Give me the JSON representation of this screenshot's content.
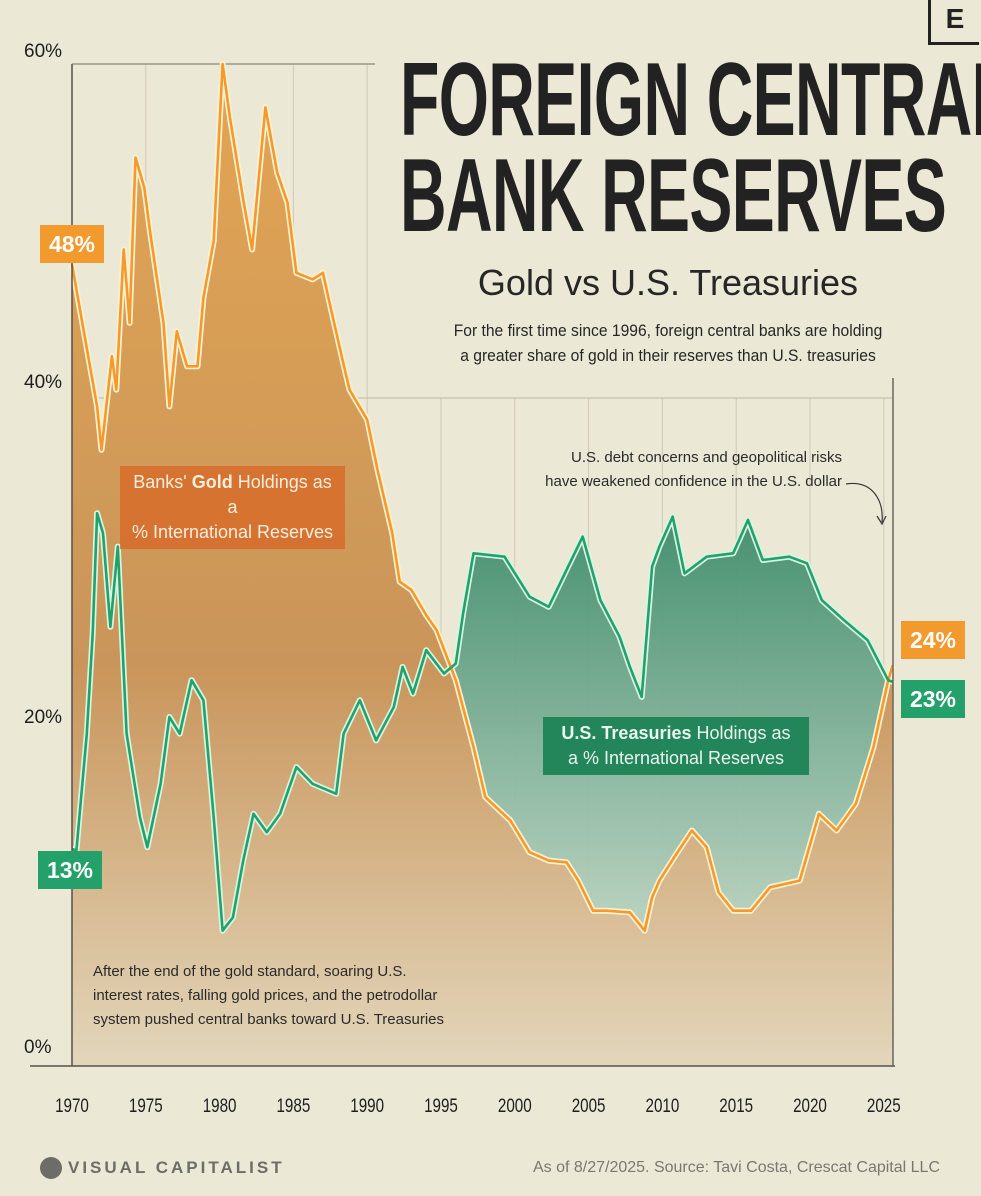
{
  "header": {
    "title_line1": "FOREIGN CENTRAL",
    "title_line2": "BANK RESERVES",
    "subtitle": "Gold vs U.S. Treasuries",
    "description_line1": "For the first time since 1996, foreign central banks are holding",
    "description_line2": "a greater share of gold in their reserves than U.S. treasuries",
    "brand_mark": "E"
  },
  "annotations": {
    "debt_line1": "U.S. debt concerns and geopolitical risks",
    "debt_line2": "have weakened confidence in the U.S. dollar",
    "std_line1": "After the end of the gold standard, soaring U.S.",
    "std_line2": "interest rates, falling gold prices, and the petrodollar",
    "std_line3": "system pushed central banks toward U.S. Treasuries"
  },
  "labels": {
    "gold_prefix": "Banks' ",
    "gold_bold": "Gold",
    "gold_suffix": " Holdings as a",
    "gold_line2": "% International Reserves",
    "tsy_bold": "U.S. Treasuries",
    "tsy_suffix": " Holdings as",
    "tsy_line2": "a % International Reserves",
    "gold_start": "48%",
    "tsy_start": "13%",
    "gold_end": "24%",
    "tsy_end": "23%"
  },
  "footer": {
    "brand": "VISUAL CAPITALIST",
    "source": "As of 8/27/2025. Source: Tavi Costa, Crescat Capital LLC"
  },
  "colors": {
    "gold": "#f29a2e",
    "treasuries": "#24a06a",
    "background": "#ece8d6"
  },
  "chart_data": {
    "type": "area",
    "xlabel": "",
    "ylabel": "",
    "xlim": [
      1970,
      2025.7
    ],
    "ylim": [
      0,
      60
    ],
    "xticks": [
      "1970",
      "1975",
      "1980",
      "1985",
      "1990",
      "1995",
      "2000",
      "2005",
      "2010",
      "2015",
      "2020",
      "2025"
    ],
    "yticks": [
      "0%",
      "20%",
      "40%",
      "60%"
    ],
    "grid": true,
    "series": [
      {
        "name": "Banks' Gold Holdings as a % International Reserves",
        "color": "#f29a2e",
        "points": [
          [
            1970,
            48
          ],
          [
            1970.7,
            44.5
          ],
          [
            1971.7,
            39.5
          ],
          [
            1972,
            36.9
          ],
          [
            1972.7,
            42.5
          ],
          [
            1973,
            40.5
          ],
          [
            1973.5,
            48.9
          ],
          [
            1973.9,
            44.5
          ],
          [
            1974.3,
            54.4
          ],
          [
            1974.9,
            52.6
          ],
          [
            1975.3,
            49.9
          ],
          [
            1976.2,
            44.5
          ],
          [
            1976.6,
            39.5
          ],
          [
            1977.1,
            44
          ],
          [
            1977.8,
            41.9
          ],
          [
            1978.5,
            41.9
          ],
          [
            1978.9,
            46
          ],
          [
            1979.6,
            49.4
          ],
          [
            1980.2,
            60
          ],
          [
            1980.7,
            56.8
          ],
          [
            1981.6,
            51.9
          ],
          [
            1982.2,
            48.9
          ],
          [
            1983.1,
            57.4
          ],
          [
            1983.9,
            53.5
          ],
          [
            1984.6,
            51.7
          ],
          [
            1985.2,
            47.5
          ],
          [
            1986.3,
            47.1
          ],
          [
            1987,
            47.5
          ],
          [
            1987.5,
            45.5
          ],
          [
            1988.4,
            42
          ],
          [
            1988.8,
            40.5
          ],
          [
            1990,
            38.7
          ],
          [
            1990.7,
            35.7
          ],
          [
            1991.7,
            31.9
          ],
          [
            1992.2,
            29
          ],
          [
            1993,
            28.5
          ],
          [
            1994,
            27
          ],
          [
            1994.7,
            26.1
          ],
          [
            1996,
            23.1
          ],
          [
            1997.2,
            19.1
          ],
          [
            1998,
            16.1
          ],
          [
            1999.7,
            14.7
          ],
          [
            2001,
            12.8
          ],
          [
            2002.3,
            12.3
          ],
          [
            2003.5,
            12.2
          ],
          [
            2004.3,
            11.1
          ],
          [
            2005.3,
            9.3
          ],
          [
            2006.2,
            9.3
          ],
          [
            2007.8,
            9.2
          ],
          [
            2008.8,
            8.1
          ],
          [
            2009.3,
            10.1
          ],
          [
            2009.8,
            11.1
          ],
          [
            2010.8,
            12.5
          ],
          [
            2012,
            14.1
          ],
          [
            2013,
            13.1
          ],
          [
            2013.8,
            10.4
          ],
          [
            2014.8,
            9.3
          ],
          [
            2016,
            9.3
          ],
          [
            2017.3,
            10.7
          ],
          [
            2019.3,
            11.1
          ],
          [
            2020.6,
            15.1
          ],
          [
            2021.8,
            14.1
          ],
          [
            2023.1,
            15.7
          ],
          [
            2024.3,
            19.1
          ],
          [
            2025.3,
            23.1
          ],
          [
            2025.6,
            24
          ]
        ]
      },
      {
        "name": "U.S. Treasuries Holdings as a % International Reserves",
        "color": "#24a06a",
        "points": [
          [
            1970,
            13
          ],
          [
            1970.3,
            12.9
          ],
          [
            1971,
            19.9
          ],
          [
            1971.4,
            25.9
          ],
          [
            1971.7,
            33.1
          ],
          [
            1972.1,
            31.9
          ],
          [
            1972.6,
            26.3
          ],
          [
            1973.1,
            31.1
          ],
          [
            1973.7,
            19.9
          ],
          [
            1974.6,
            14.9
          ],
          [
            1975.1,
            13.1
          ],
          [
            1976,
            16.9
          ],
          [
            1976.6,
            20.9
          ],
          [
            1977.3,
            19.9
          ],
          [
            1978.1,
            23.1
          ],
          [
            1978.9,
            21.9
          ],
          [
            1979.6,
            14.9
          ],
          [
            1980.2,
            8.1
          ],
          [
            1980.9,
            8.9
          ],
          [
            1981.6,
            12.3
          ],
          [
            1982.3,
            15.1
          ],
          [
            1983.2,
            14
          ],
          [
            1984.1,
            15.1
          ],
          [
            1985.2,
            17.9
          ],
          [
            1986.3,
            16.9
          ],
          [
            1987.9,
            16.3
          ],
          [
            1988.4,
            19.9
          ],
          [
            1989.5,
            21.9
          ],
          [
            1990.6,
            19.5
          ],
          [
            1991.8,
            21.5
          ],
          [
            1992.4,
            23.9
          ],
          [
            1993.1,
            22.3
          ],
          [
            1994,
            24.9
          ],
          [
            1995.2,
            23.5
          ],
          [
            1996,
            24.1
          ],
          [
            1996.5,
            27.1
          ],
          [
            1997.2,
            30.7
          ],
          [
            1999.3,
            30.5
          ],
          [
            2001,
            28.1
          ],
          [
            2002.3,
            27.5
          ],
          [
            2003.5,
            29.7
          ],
          [
            2004.6,
            31.7
          ],
          [
            2005.8,
            27.9
          ],
          [
            2007.1,
            25.7
          ],
          [
            2007.8,
            23.9
          ],
          [
            2008.6,
            22.1
          ],
          [
            2009.3,
            29.9
          ],
          [
            2009.8,
            31.1
          ],
          [
            2010.7,
            32.9
          ],
          [
            2011.5,
            29.5
          ],
          [
            2013,
            30.5
          ],
          [
            2014.8,
            30.7
          ],
          [
            2015.8,
            32.7
          ],
          [
            2016.8,
            30.3
          ],
          [
            2018.6,
            30.5
          ],
          [
            2019.8,
            30.1
          ],
          [
            2020.8,
            27.9
          ],
          [
            2022.3,
            26.7
          ],
          [
            2023.9,
            25.5
          ],
          [
            2025.3,
            23.1
          ],
          [
            2025.6,
            23
          ]
        ]
      }
    ]
  }
}
